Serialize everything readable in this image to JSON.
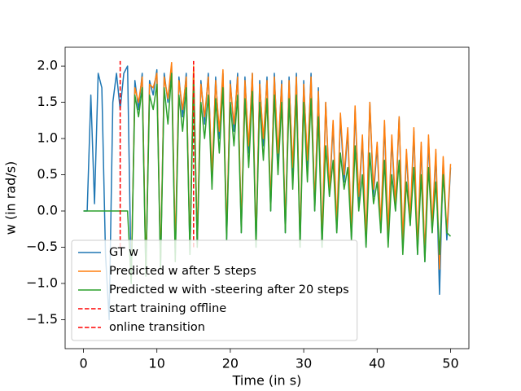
{
  "chart_data": {
    "type": "line",
    "xlabel": "Time (in s)",
    "ylabel": "w (in rad/s)",
    "x": [
      0,
      0.5,
      1,
      1.5,
      2,
      2.5,
      3,
      3.5,
      4,
      4.5,
      5,
      5.5,
      6,
      6.5,
      7,
      7.5,
      8,
      8.5,
      9,
      9.5,
      10,
      10.5,
      11,
      11.5,
      12,
      12.5,
      13,
      13.5,
      14,
      14.5,
      15,
      15.5,
      16,
      16.5,
      17,
      17.5,
      18,
      18.5,
      19,
      19.5,
      20,
      20.5,
      21,
      21.5,
      22,
      22.5,
      23,
      23.5,
      24,
      24.5,
      25,
      25.5,
      26,
      26.5,
      27,
      27.5,
      28,
      28.5,
      29,
      29.5,
      30,
      30.5,
      31,
      31.5,
      32,
      32.5,
      33,
      33.5,
      34,
      34.5,
      35,
      35.5,
      36,
      36.5,
      37,
      37.5,
      38,
      38.5,
      39,
      39.5,
      40,
      40.5,
      41,
      41.5,
      42,
      42.5,
      43,
      43.5,
      44,
      44.5,
      45,
      45.5,
      46,
      46.5,
      47,
      47.5,
      48,
      48.5,
      49,
      49.5,
      50
    ],
    "series": [
      {
        "name": "GT w",
        "color": "#1f77b4",
        "values": [
          0,
          0,
          1.6,
          0.1,
          1.9,
          1.7,
          -0.6,
          -1.5,
          1.5,
          1.9,
          1.4,
          1.9,
          2.0,
          -1.0,
          1.8,
          1.4,
          1.9,
          -0.9,
          1.8,
          1.6,
          1.95,
          -0.8,
          1.9,
          1.5,
          2.0,
          -0.6,
          1.85,
          1.3,
          1.9,
          -0.6,
          1.95,
          -0.5,
          1.8,
          1.2,
          1.9,
          0.4,
          1.85,
          1.0,
          1.9,
          -0.4,
          1.8,
          1.1,
          1.9,
          -0.3,
          1.85,
          0.8,
          1.9,
          -0.5,
          1.8,
          0.9,
          1.85,
          0.0,
          1.9,
          0.7,
          1.8,
          -0.3,
          1.85,
          0.5,
          1.9,
          -0.5,
          1.8,
          0.6,
          1.9,
          0.0,
          1.7,
          -0.5,
          1.5,
          0.2,
          1.2,
          -0.3,
          1.3,
          0.4,
          1.1,
          -0.4,
          1.4,
          0.1,
          1.0,
          -0.5,
          1.5,
          0.2,
          0.9,
          -0.3,
          1.2,
          -0.4,
          1.0,
          0.0,
          1.3,
          -0.5,
          0.8,
          -0.2,
          1.1,
          -0.6,
          0.9,
          -0.7,
          1.0,
          -0.3,
          0.8,
          -1.15,
          0.7,
          -0.4,
          0.6
        ]
      },
      {
        "name": "Predicted w after 5 steps",
        "color": "#ff7f0e",
        "values": [
          null,
          null,
          null,
          null,
          null,
          null,
          null,
          null,
          null,
          null,
          null,
          null,
          null,
          -0.9,
          1.7,
          1.5,
          1.85,
          -0.8,
          1.75,
          1.7,
          1.9,
          -0.7,
          1.85,
          1.55,
          2.05,
          -0.5,
          1.8,
          1.4,
          1.85,
          -0.5,
          2.0,
          -0.4,
          1.75,
          1.3,
          1.85,
          0.5,
          1.8,
          1.1,
          1.95,
          -0.3,
          1.75,
          1.2,
          1.85,
          -0.2,
          1.8,
          0.9,
          1.9,
          -0.4,
          1.75,
          1.0,
          1.8,
          0.1,
          1.85,
          0.8,
          1.75,
          -0.2,
          1.8,
          0.6,
          1.85,
          -0.4,
          1.75,
          0.7,
          1.85,
          0.1,
          1.65,
          -0.4,
          1.5,
          0.3,
          1.25,
          -0.2,
          1.35,
          0.5,
          1.15,
          -0.3,
          1.45,
          0.2,
          1.05,
          -0.4,
          1.5,
          0.3,
          0.95,
          -0.2,
          1.25,
          -0.3,
          1.05,
          0.1,
          1.3,
          -0.4,
          0.85,
          -0.1,
          1.15,
          -0.5,
          0.95,
          -0.6,
          1.05,
          -0.2,
          0.85,
          -0.8,
          0.75,
          -0.3,
          0.65
        ]
      },
      {
        "name": "Predicted w with -steering after 20 steps",
        "color": "#2ca02c",
        "values": [
          0,
          0,
          0,
          0,
          0,
          0,
          0,
          0,
          0,
          0,
          0,
          0,
          0,
          -1.0,
          1.6,
          1.3,
          1.7,
          -0.9,
          1.6,
          1.4,
          1.75,
          -0.8,
          1.7,
          1.2,
          1.9,
          -0.7,
          1.6,
          1.1,
          1.7,
          -0.6,
          1.8,
          -0.5,
          1.5,
          1.0,
          1.6,
          0.3,
          1.55,
          0.8,
          1.7,
          -0.4,
          1.5,
          0.9,
          1.6,
          -0.3,
          1.55,
          0.6,
          1.65,
          -0.5,
          1.5,
          0.7,
          1.55,
          0.0,
          1.6,
          0.5,
          1.5,
          -0.3,
          1.55,
          0.3,
          1.6,
          -0.5,
          1.5,
          0.4,
          1.55,
          0.0,
          1.3,
          -0.5,
          0.9,
          0.2,
          0.7,
          -0.3,
          0.8,
          0.3,
          0.6,
          -0.4,
          0.9,
          0.0,
          0.5,
          -0.5,
          0.8,
          0.1,
          0.4,
          -0.3,
          0.7,
          -0.5,
          0.5,
          0.0,
          0.7,
          -0.6,
          0.4,
          -0.2,
          0.6,
          -0.6,
          0.5,
          -0.7,
          0.6,
          -0.3,
          0.4,
          -0.6,
          0.5,
          -0.3,
          -0.35
        ]
      }
    ],
    "vlines": [
      {
        "name": "start training offline",
        "color": "#ff0000",
        "x": 5,
        "ymin": -0.5,
        "ymax": 2.07
      },
      {
        "name": "online transition",
        "color": "#ff0000",
        "x": 15,
        "ymin": -0.5,
        "ymax": 2.07
      }
    ],
    "xlim": [
      -2.5,
      52.5
    ],
    "ylim": [
      -1.9,
      2.26
    ],
    "xticks": [
      0,
      10,
      20,
      30,
      40,
      50
    ],
    "yticks": [
      {
        "value": -1.5,
        "label": "−1.5"
      },
      {
        "value": -1.0,
        "label": "−1.0"
      },
      {
        "value": -0.5,
        "label": "−0.5"
      },
      {
        "value": 0,
        "label": "0.0"
      },
      0.5,
      {
        "value": 1.0,
        "label": "1.0"
      },
      1.5,
      {
        "value": 2.0,
        "label": "2.0"
      }
    ],
    "legend": "lower left",
    "grid": false
  }
}
